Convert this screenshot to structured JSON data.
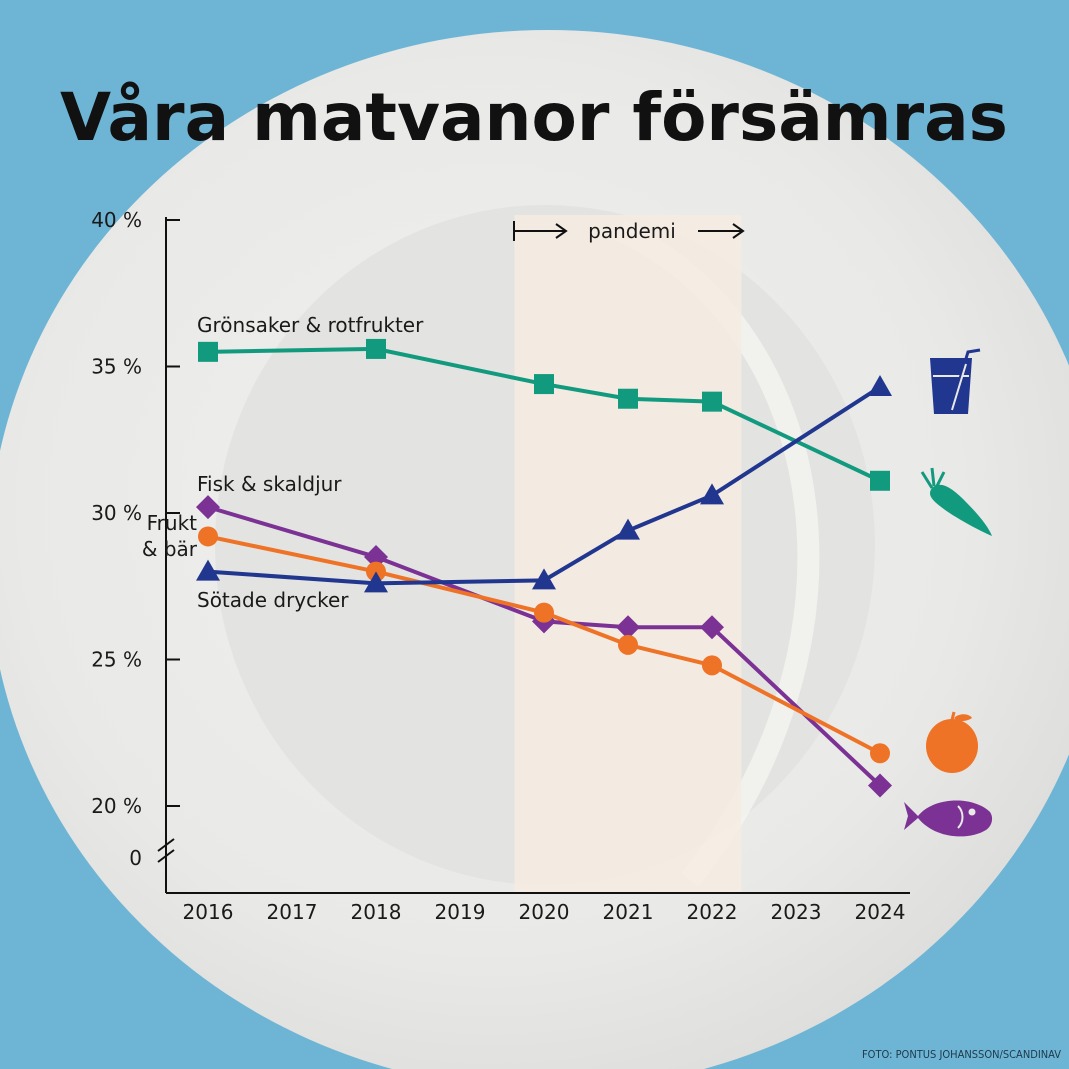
{
  "title": "Våra matvanor försämras",
  "credit": "FOTO: PONTUS JOHANSSON/SCANDINAV",
  "chart_data": {
    "type": "line",
    "title": "Våra matvanor försämras",
    "xlabel": "",
    "ylabel": "",
    "x": [
      2016,
      2017,
      2018,
      2019,
      2020,
      2021,
      2022,
      2023,
      2024
    ],
    "x_tick_labels": [
      "2016",
      "2017",
      "2018",
      "2019",
      "2020",
      "2021",
      "2022",
      "2023",
      "2024"
    ],
    "y_tick_labels": [
      "40 %",
      "35 %",
      "30 %",
      "25 %",
      "20 %",
      "0"
    ],
    "y_ticks": [
      40,
      35,
      30,
      25,
      20
    ],
    "ylim": [
      18.2,
      40
    ],
    "axis_break": true,
    "grid": false,
    "highlight": {
      "label": "pandemi",
      "from": 2019.65,
      "to": 2022.35
    },
    "series": [
      {
        "name": "Grönsaker & rotfrukter",
        "color": "#129a7f",
        "marker": "square",
        "icon": "carrot-icon",
        "x": [
          2016,
          2018,
          2020,
          2021,
          2022,
          2024
        ],
        "values": [
          35.5,
          35.6,
          34.4,
          33.9,
          33.8,
          31.1
        ]
      },
      {
        "name": "Fisk & skaldjur",
        "color": "#7b3294",
        "marker": "diamond",
        "icon": "fish-icon",
        "x": [
          2016,
          2018,
          2020,
          2021,
          2022,
          2024
        ],
        "values": [
          30.2,
          28.5,
          26.3,
          26.1,
          26.1,
          20.7
        ]
      },
      {
        "name": "Frukt\n& bär",
        "color": "#ee7326",
        "marker": "circle",
        "icon": "apple-icon",
        "x": [
          2016,
          2018,
          2020,
          2021,
          2022,
          2024
        ],
        "values": [
          29.2,
          28.0,
          26.6,
          25.5,
          24.8,
          21.8
        ]
      },
      {
        "name": "Sötade drycker",
        "color": "#21368f",
        "marker": "triangle",
        "icon": "glass-icon",
        "x": [
          2016,
          2018,
          2020,
          2021,
          2022,
          2024
        ],
        "values": [
          28.0,
          27.6,
          27.7,
          29.4,
          30.6,
          34.3
        ]
      }
    ]
  }
}
